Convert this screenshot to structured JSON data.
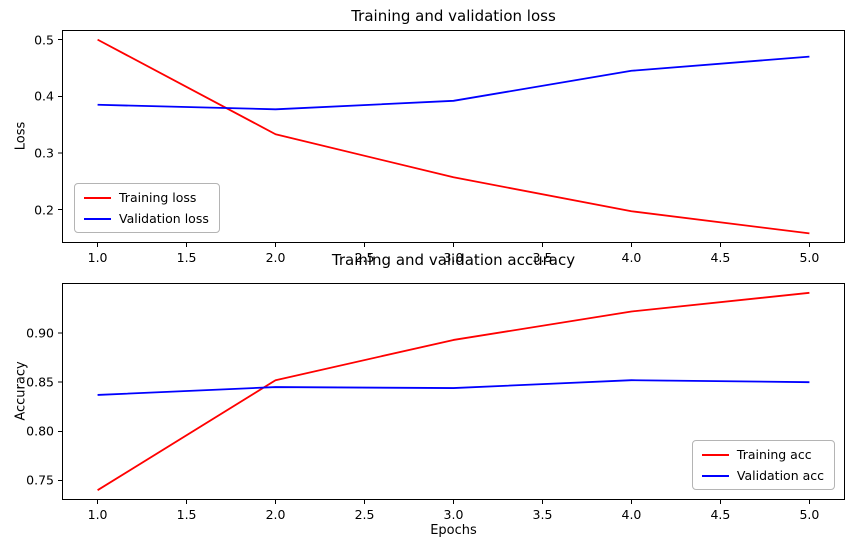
{
  "chart_data": [
    {
      "type": "line",
      "title": "Training and validation loss",
      "xlabel": "",
      "ylabel": "Loss",
      "x": [
        1,
        2,
        3,
        4,
        5
      ],
      "xlim": [
        0.8,
        5.2
      ],
      "ylim": [
        0.141,
        0.517
      ],
      "xticks": [
        1.0,
        1.5,
        2.0,
        2.5,
        3.0,
        3.5,
        4.0,
        4.5,
        5.0
      ],
      "xtick_labels": [
        "1.0",
        "1.5",
        "2.0",
        "2.5",
        "3.0",
        "3.5",
        "4.0",
        "4.5",
        "5.0"
      ],
      "yticks": [
        0.2,
        0.3,
        0.4,
        0.5
      ],
      "ytick_labels": [
        "0.2",
        "0.3",
        "0.4",
        "0.5"
      ],
      "grid": false,
      "legend_position": "lower left",
      "series": [
        {
          "name": "Training loss",
          "color": "#ff0000",
          "values": [
            0.5,
            0.333,
            0.257,
            0.197,
            0.158
          ]
        },
        {
          "name": "Validation loss",
          "color": "#0000ff",
          "values": [
            0.385,
            0.377,
            0.392,
            0.445,
            0.47
          ]
        }
      ]
    },
    {
      "type": "line",
      "title": "Training and validation accuracy",
      "xlabel": "Epochs",
      "ylabel": "Accuracy",
      "x": [
        1,
        2,
        3,
        4,
        5
      ],
      "xlim": [
        0.8,
        5.2
      ],
      "ylim": [
        0.73,
        0.951
      ],
      "xticks": [
        1.0,
        1.5,
        2.0,
        2.5,
        3.0,
        3.5,
        4.0,
        4.5,
        5.0
      ],
      "xtick_labels": [
        "1.0",
        "1.5",
        "2.0",
        "2.5",
        "3.0",
        "3.5",
        "4.0",
        "4.5",
        "5.0"
      ],
      "yticks": [
        0.75,
        0.8,
        0.85,
        0.9
      ],
      "ytick_labels": [
        "0.75",
        "0.80",
        "0.85",
        "0.90"
      ],
      "grid": false,
      "legend_position": "lower right",
      "series": [
        {
          "name": "Training acc",
          "color": "#ff0000",
          "values": [
            0.74,
            0.852,
            0.893,
            0.922,
            0.941
          ]
        },
        {
          "name": "Validation acc",
          "color": "#0000ff",
          "values": [
            0.837,
            0.845,
            0.844,
            0.852,
            0.85
          ]
        }
      ]
    }
  ],
  "figure": {
    "background": "#ffffff",
    "text_color": "#000000",
    "axis_color": "#000000",
    "line_colors": {
      "training": "#ff0000",
      "validation": "#0000ff"
    }
  }
}
